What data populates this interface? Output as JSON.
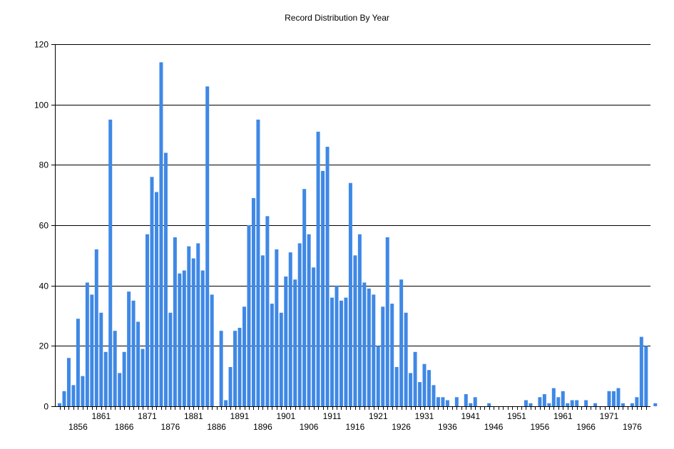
{
  "chart_data": {
    "type": "bar",
    "title": "Record Distribution By Year",
    "xlabel": "",
    "ylabel": "",
    "x_start": 1852,
    "x_end": 1979,
    "ylim": [
      0,
      120
    ],
    "y_ticks": [
      0,
      20,
      40,
      60,
      80,
      100,
      120
    ],
    "x_tick_labels_upper": [
      "1861",
      "1871",
      "1881",
      "1891",
      "1901",
      "1911",
      "1921",
      "1931",
      "1941",
      "1951",
      "1961",
      "1971"
    ],
    "x_tick_labels_lower": [
      "1856",
      "1866",
      "1876",
      "1886",
      "1896",
      "1906",
      "1916",
      "1926",
      "1936",
      "1946",
      "1956",
      "1966",
      "1976"
    ],
    "grid": true,
    "legend": "none",
    "bar_color": "#3f88e5",
    "series": [
      {
        "values": [
          [
            1852,
            1
          ],
          [
            1853,
            5
          ],
          [
            1854,
            16
          ],
          [
            1855,
            7
          ],
          [
            1856,
            29
          ],
          [
            1857,
            10
          ],
          [
            1858,
            41
          ],
          [
            1859,
            37
          ],
          [
            1860,
            52
          ],
          [
            1861,
            31
          ],
          [
            1862,
            18
          ],
          [
            1863,
            95
          ],
          [
            1864,
            25
          ],
          [
            1865,
            11
          ],
          [
            1866,
            18
          ],
          [
            1867,
            38
          ],
          [
            1868,
            35
          ],
          [
            1869,
            28
          ],
          [
            1870,
            19
          ],
          [
            1871,
            57
          ],
          [
            1872,
            76
          ],
          [
            1873,
            71
          ],
          [
            1874,
            114
          ],
          [
            1875,
            84
          ],
          [
            1876,
            31
          ],
          [
            1877,
            56
          ],
          [
            1878,
            44
          ],
          [
            1879,
            45
          ],
          [
            1880,
            53
          ],
          [
            1881,
            49
          ],
          [
            1882,
            54
          ],
          [
            1883,
            45
          ],
          [
            1884,
            106
          ],
          [
            1885,
            37
          ],
          [
            1887,
            25
          ],
          [
            1888,
            2
          ],
          [
            1889,
            13
          ],
          [
            1890,
            25
          ],
          [
            1891,
            26
          ],
          [
            1892,
            33
          ],
          [
            1893,
            60
          ],
          [
            1894,
            69
          ],
          [
            1895,
            95
          ],
          [
            1896,
            50
          ],
          [
            1897,
            63
          ],
          [
            1898,
            34
          ],
          [
            1899,
            52
          ],
          [
            1900,
            31
          ],
          [
            1901,
            43
          ],
          [
            1902,
            51
          ],
          [
            1903,
            42
          ],
          [
            1904,
            54
          ],
          [
            1905,
            72
          ],
          [
            1906,
            57
          ],
          [
            1907,
            46
          ],
          [
            1908,
            91
          ],
          [
            1909,
            78
          ],
          [
            1910,
            86
          ],
          [
            1911,
            36
          ],
          [
            1912,
            40
          ],
          [
            1913,
            35
          ],
          [
            1914,
            36
          ],
          [
            1915,
            74
          ],
          [
            1916,
            50
          ],
          [
            1917,
            57
          ],
          [
            1918,
            41
          ],
          [
            1919,
            39
          ],
          [
            1920,
            37
          ],
          [
            1921,
            20
          ],
          [
            1922,
            33
          ],
          [
            1923,
            56
          ],
          [
            1924,
            34
          ],
          [
            1925,
            13
          ],
          [
            1926,
            42
          ],
          [
            1927,
            31
          ],
          [
            1928,
            11
          ],
          [
            1929,
            18
          ],
          [
            1930,
            8
          ],
          [
            1931,
            14
          ],
          [
            1932,
            12
          ],
          [
            1933,
            7
          ],
          [
            1934,
            3
          ],
          [
            1935,
            3
          ],
          [
            1936,
            2
          ],
          [
            1938,
            3
          ],
          [
            1940,
            4
          ],
          [
            1941,
            1
          ],
          [
            1942,
            3
          ],
          [
            1945,
            1
          ],
          [
            1953,
            2
          ],
          [
            1954,
            1
          ],
          [
            1956,
            3
          ],
          [
            1957,
            4
          ],
          [
            1958,
            1
          ],
          [
            1959,
            6
          ],
          [
            1960,
            3
          ],
          [
            1961,
            5
          ],
          [
            1962,
            1
          ],
          [
            1963,
            2
          ],
          [
            1964,
            2
          ],
          [
            1966,
            2
          ],
          [
            1968,
            1
          ],
          [
            1971,
            5
          ],
          [
            1972,
            5
          ],
          [
            1973,
            6
          ],
          [
            1974,
            1
          ],
          [
            1976,
            1
          ],
          [
            1977,
            3
          ],
          [
            1978,
            23
          ],
          [
            1979,
            20
          ],
          [
            1981,
            1
          ]
        ]
      }
    ]
  }
}
